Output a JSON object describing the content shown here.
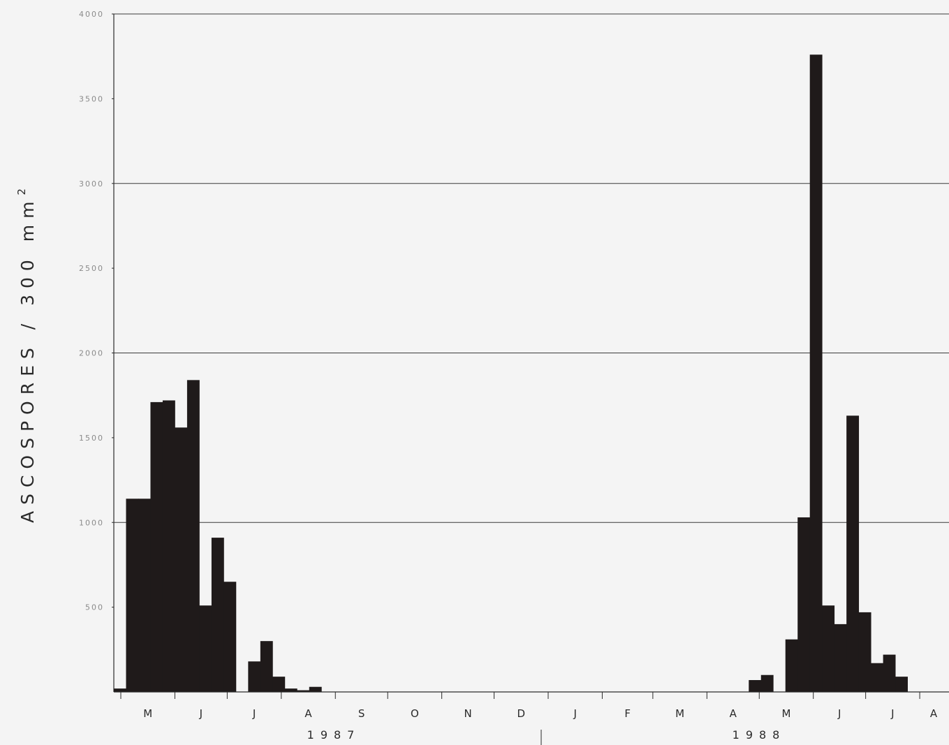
{
  "chart_data": {
    "type": "bar",
    "ylabel": "ASCOSPORES / 300 mm",
    "ylabel_superscript": "2",
    "ylim": [
      0,
      4000
    ],
    "yticks": [
      500,
      1000,
      1500,
      2000,
      2500,
      3000,
      3500,
      4000
    ],
    "ytick_labels": [
      "500",
      "1000",
      "1500",
      "2000",
      "2500",
      "3000",
      "3500",
      "4000"
    ],
    "gridlines_at": [
      1000,
      2000,
      3000,
      4000
    ],
    "month_labels": [
      "M",
      "J",
      "J",
      "A",
      "S",
      "O",
      "N",
      "D",
      "J",
      "F",
      "M",
      "A",
      "M",
      "J",
      "J",
      "A"
    ],
    "year_labels": [
      "1987",
      "1988"
    ],
    "bar_color": "#1f1a1a",
    "background_color": "#f4f4f4",
    "weeks": [
      "1987-04-27",
      "1987-05-04",
      "1987-05-11",
      "1987-05-18",
      "1987-05-25",
      "1987-06-01",
      "1987-06-08",
      "1987-06-15",
      "1987-06-22",
      "1987-06-29",
      "1987-07-06",
      "1987-07-13",
      "1987-07-20",
      "1987-07-27",
      "1987-08-03",
      "1987-08-10",
      "1987-08-17",
      "1988-04-25",
      "1988-05-02",
      "1988-05-09",
      "1988-05-16",
      "1988-05-23",
      "1988-05-30",
      "1988-06-06",
      "1988-06-13",
      "1988-06-20",
      "1988-06-27",
      "1988-07-04",
      "1988-07-11",
      "1988-07-18",
      "1988-07-25",
      "1988-08-01",
      "1988-08-08"
    ],
    "values": [
      20,
      1140,
      1140,
      1710,
      1720,
      1560,
      1840,
      510,
      910,
      650,
      0,
      180,
      300,
      90,
      20,
      10,
      30,
      70,
      100,
      0,
      310,
      1030,
      3760,
      510,
      400,
      1630,
      470,
      170,
      220,
      90,
      0,
      0,
      0
    ]
  }
}
